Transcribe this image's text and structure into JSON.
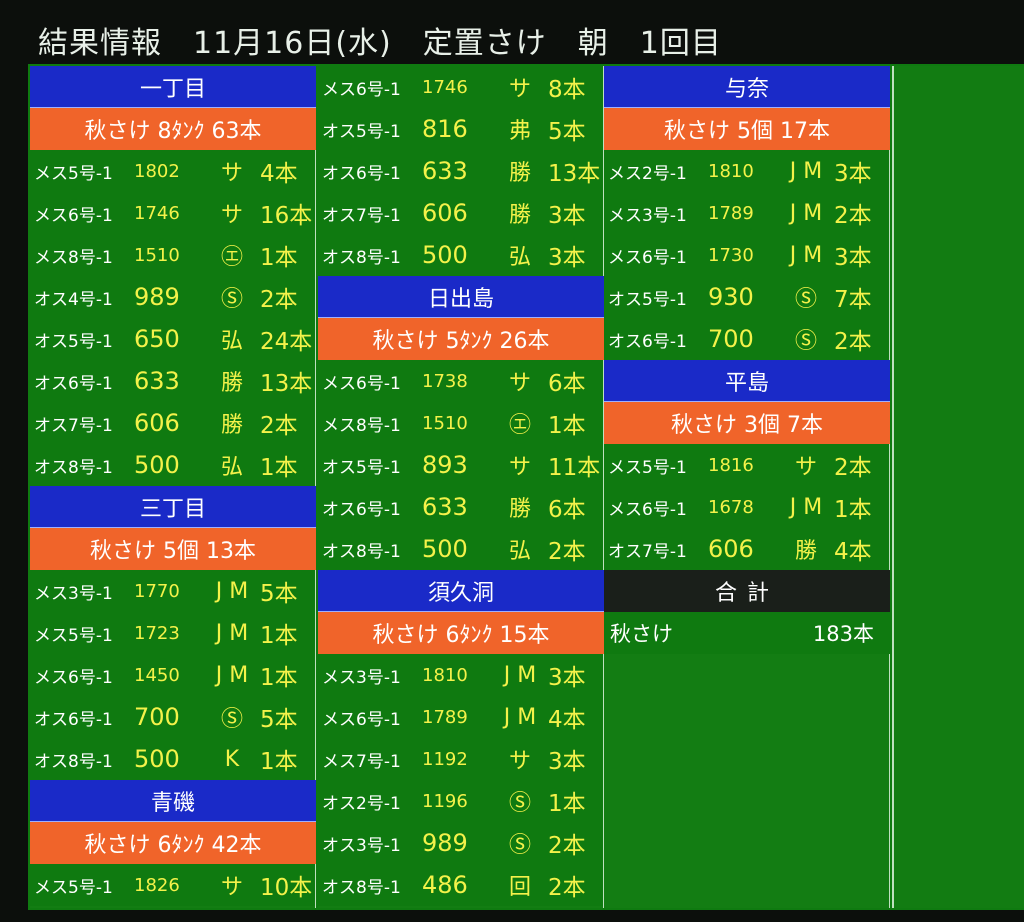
{
  "title": "結果情報　11月16日(水)　定置さけ　朝　1回目",
  "columns": [
    [
      {
        "type": "header",
        "text": "一丁目"
      },
      {
        "type": "sub",
        "text": "秋さけ 8ﾀﾝｸ 63本"
      },
      {
        "type": "row",
        "tag": "メス5号-1",
        "size": "1802",
        "mark": "サ",
        "cnt": "4本"
      },
      {
        "type": "row",
        "tag": "メス6号-1",
        "size": "1746",
        "mark": "サ",
        "cnt": "16本"
      },
      {
        "type": "row",
        "tag": "メス8号-1",
        "size": "1510",
        "mark": "㋓",
        "cnt": "1本"
      },
      {
        "type": "row",
        "tag": "オス4号-1",
        "size": "989",
        "mark": "Ⓢ",
        "cnt": "2本"
      },
      {
        "type": "row",
        "tag": "オス5号-1",
        "size": "650",
        "mark": "弘",
        "cnt": "24本"
      },
      {
        "type": "row",
        "tag": "オス6号-1",
        "size": "633",
        "mark": "勝",
        "cnt": "13本"
      },
      {
        "type": "row",
        "tag": "オス7号-1",
        "size": "606",
        "mark": "勝",
        "cnt": "2本"
      },
      {
        "type": "row",
        "tag": "オス8号-1",
        "size": "500",
        "mark": "弘",
        "cnt": "1本"
      },
      {
        "type": "header",
        "text": "三丁目"
      },
      {
        "type": "sub",
        "text": "秋さけ 5個 13本"
      },
      {
        "type": "row",
        "tag": "メス3号-1",
        "size": "1770",
        "mark": "J M",
        "cnt": "5本"
      },
      {
        "type": "row",
        "tag": "メス5号-1",
        "size": "1723",
        "mark": "J M",
        "cnt": "1本"
      },
      {
        "type": "row",
        "tag": "メス6号-1",
        "size": "1450",
        "mark": "J M",
        "cnt": "1本"
      },
      {
        "type": "row",
        "tag": "オス6号-1",
        "size": "700",
        "mark": "Ⓢ",
        "cnt": "5本"
      },
      {
        "type": "row",
        "tag": "オス8号-1",
        "size": "500",
        "mark": "K",
        "cnt": "1本"
      },
      {
        "type": "header",
        "text": "青磯"
      },
      {
        "type": "sub",
        "text": "秋さけ 6ﾀﾝｸ 42本"
      },
      {
        "type": "row",
        "tag": "メス5号-1",
        "size": "1826",
        "mark": "サ",
        "cnt": "10本"
      }
    ],
    [
      {
        "type": "row",
        "tag": "メス6号-1",
        "size": "1746",
        "mark": "サ",
        "cnt": "8本"
      },
      {
        "type": "row",
        "tag": "オス5号-1",
        "size": "816",
        "mark": "弗",
        "cnt": "5本"
      },
      {
        "type": "row",
        "tag": "オス6号-1",
        "size": "633",
        "mark": "勝",
        "cnt": "13本"
      },
      {
        "type": "row",
        "tag": "オス7号-1",
        "size": "606",
        "mark": "勝",
        "cnt": "3本"
      },
      {
        "type": "row",
        "tag": "オス8号-1",
        "size": "500",
        "mark": "弘",
        "cnt": "3本"
      },
      {
        "type": "header",
        "text": "日出島"
      },
      {
        "type": "sub",
        "text": "秋さけ 5ﾀﾝｸ 26本"
      },
      {
        "type": "row",
        "tag": "メス6号-1",
        "size": "1738",
        "mark": "サ",
        "cnt": "6本"
      },
      {
        "type": "row",
        "tag": "メス8号-1",
        "size": "1510",
        "mark": "㋓",
        "cnt": "1本"
      },
      {
        "type": "row",
        "tag": "オス5号-1",
        "size": "893",
        "mark": "サ",
        "cnt": "11本"
      },
      {
        "type": "row",
        "tag": "オス6号-1",
        "size": "633",
        "mark": "勝",
        "cnt": "6本"
      },
      {
        "type": "row",
        "tag": "オス8号-1",
        "size": "500",
        "mark": "弘",
        "cnt": "2本"
      },
      {
        "type": "header",
        "text": "須久洞"
      },
      {
        "type": "sub",
        "text": "秋さけ 6ﾀﾝｸ 15本"
      },
      {
        "type": "row",
        "tag": "メス3号-1",
        "size": "1810",
        "mark": "J M",
        "cnt": "3本"
      },
      {
        "type": "row",
        "tag": "メス6号-1",
        "size": "1789",
        "mark": "J M",
        "cnt": "4本"
      },
      {
        "type": "row",
        "tag": "メス7号-1",
        "size": "1192",
        "mark": "サ",
        "cnt": "3本"
      },
      {
        "type": "row",
        "tag": "オス2号-1",
        "size": "1196",
        "mark": "Ⓢ",
        "cnt": "1本"
      },
      {
        "type": "row",
        "tag": "オス3号-1",
        "size": "989",
        "mark": "Ⓢ",
        "cnt": "2本"
      },
      {
        "type": "row",
        "tag": "オス8号-1",
        "size": "486",
        "mark": "回",
        "cnt": "2本"
      }
    ],
    [
      {
        "type": "header",
        "text": "与奈"
      },
      {
        "type": "sub",
        "text": "秋さけ 5個 17本"
      },
      {
        "type": "row",
        "tag": "メス2号-1",
        "size": "1810",
        "mark": "J M",
        "cnt": "3本"
      },
      {
        "type": "row",
        "tag": "メス3号-1",
        "size": "1789",
        "mark": "J M",
        "cnt": "2本"
      },
      {
        "type": "row",
        "tag": "メス6号-1",
        "size": "1730",
        "mark": "J M",
        "cnt": "3本"
      },
      {
        "type": "row",
        "tag": "オス5号-1",
        "size": "930",
        "mark": "Ⓢ",
        "cnt": "7本"
      },
      {
        "type": "row",
        "tag": "オス6号-1",
        "size": "700",
        "mark": "Ⓢ",
        "cnt": "2本"
      },
      {
        "type": "header",
        "text": "平島"
      },
      {
        "type": "sub",
        "text": "秋さけ 3個 7本"
      },
      {
        "type": "row",
        "tag": "メス5号-1",
        "size": "1816",
        "mark": "サ",
        "cnt": "2本"
      },
      {
        "type": "row",
        "tag": "メス6号-1",
        "size": "1678",
        "mark": "J M",
        "cnt": "1本"
      },
      {
        "type": "row",
        "tag": "オス7号-1",
        "size": "606",
        "mark": "勝",
        "cnt": "4本"
      },
      {
        "type": "total",
        "text": "合計"
      },
      {
        "type": "totalrow",
        "label": "秋さけ",
        "cnt": "183本"
      }
    ]
  ],
  "colors": {
    "board": "#0f7a10",
    "header": "#1a2ac8",
    "subheader": "#f0642a",
    "value": "#f4f24a"
  }
}
